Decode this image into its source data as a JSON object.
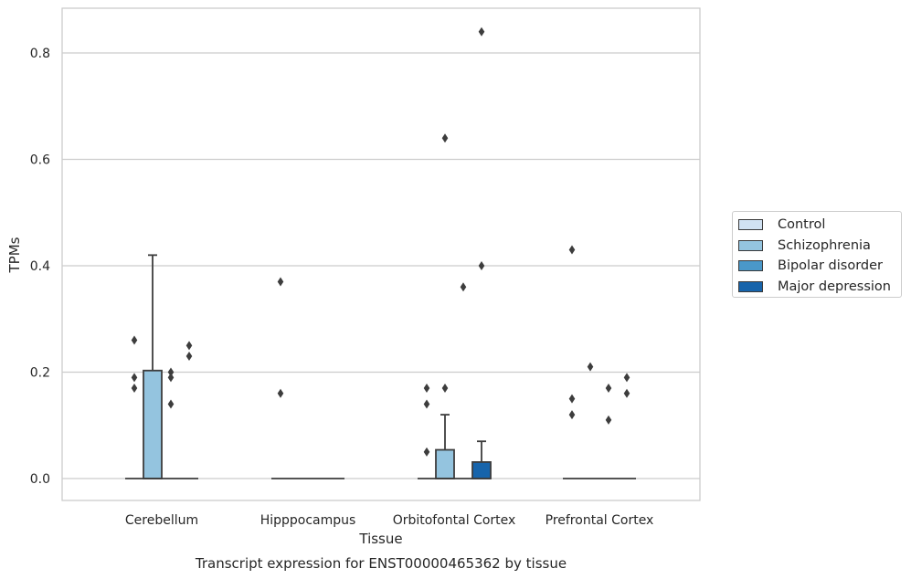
{
  "chart_data": {
    "type": "box",
    "title": "Transcript expression for ENST00000465362 by tissue",
    "xlabel": "Tissue",
    "ylabel": "TPMs",
    "ylim": [
      -0.04,
      0.885
    ],
    "yticks": [
      "0.0",
      "0.2",
      "0.4",
      "0.6",
      "0.8"
    ],
    "ytick_values": [
      0.0,
      0.2,
      0.4,
      0.6,
      0.8
    ],
    "grid": "horizontal",
    "legend_position": "right",
    "categories": [
      "Cerebellum",
      "Hipppocampus",
      "Orbitofontal Cortex",
      "Prefrontal Cortex"
    ],
    "series": [
      {
        "name": "Control",
        "color": "#d0e1f2"
      },
      {
        "name": "Schizophrenia",
        "color": "#94c4df"
      },
      {
        "name": "Bipolar disorder",
        "color": "#4a98c9"
      },
      {
        "name": "Major depression",
        "color": "#1764ab"
      }
    ],
    "boxes": [
      {
        "category": "Cerebellum",
        "series": "Control",
        "q1": 0,
        "median": 0,
        "q3": 0,
        "whisker_low": 0,
        "whisker_high": 0,
        "outliers": [
          0.26,
          0.19,
          0.17
        ]
      },
      {
        "category": "Cerebellum",
        "series": "Schizophrenia",
        "q1": 0,
        "median": 0,
        "q3": 0.203,
        "whisker_low": 0,
        "whisker_high": 0.42,
        "outliers": []
      },
      {
        "category": "Cerebellum",
        "series": "Bipolar disorder",
        "q1": 0,
        "median": 0,
        "q3": 0,
        "whisker_low": 0,
        "whisker_high": 0,
        "outliers": [
          0.2,
          0.19,
          0.14
        ]
      },
      {
        "category": "Cerebellum",
        "series": "Major depression",
        "q1": 0,
        "median": 0,
        "q3": 0,
        "whisker_low": 0,
        "whisker_high": 0,
        "outliers": [
          0.25,
          0.23
        ]
      },
      {
        "category": "Hipppocampus",
        "series": "Control",
        "q1": 0,
        "median": 0,
        "q3": 0,
        "whisker_low": 0,
        "whisker_high": 0,
        "outliers": [
          0.37,
          0.16
        ]
      },
      {
        "category": "Hipppocampus",
        "series": "Schizophrenia",
        "q1": 0,
        "median": 0,
        "q3": 0,
        "whisker_low": 0,
        "whisker_high": 0,
        "outliers": []
      },
      {
        "category": "Hipppocampus",
        "series": "Bipolar disorder",
        "q1": 0,
        "median": 0,
        "q3": 0,
        "whisker_low": 0,
        "whisker_high": 0,
        "outliers": []
      },
      {
        "category": "Hipppocampus",
        "series": "Major depression",
        "q1": 0,
        "median": 0,
        "q3": 0,
        "whisker_low": 0,
        "whisker_high": 0,
        "outliers": []
      },
      {
        "category": "Orbitofontal Cortex",
        "series": "Control",
        "q1": 0,
        "median": 0,
        "q3": 0,
        "whisker_low": 0,
        "whisker_high": 0,
        "outliers": [
          0.17,
          0.14,
          0.05
        ]
      },
      {
        "category": "Orbitofontal Cortex",
        "series": "Schizophrenia",
        "q1": 0,
        "median": 0,
        "q3": 0.054,
        "whisker_low": 0,
        "whisker_high": 0.12,
        "outliers": [
          0.64,
          0.17
        ]
      },
      {
        "category": "Orbitofontal Cortex",
        "series": "Bipolar disorder",
        "q1": 0,
        "median": 0,
        "q3": 0,
        "whisker_low": 0,
        "whisker_high": 0,
        "outliers": [
          0.36
        ]
      },
      {
        "category": "Orbitofontal Cortex",
        "series": "Major depression",
        "q1": 0,
        "median": 0,
        "q3": 0.031,
        "whisker_low": 0,
        "whisker_high": 0.07,
        "outliers": [
          0.84,
          0.4
        ]
      },
      {
        "category": "Prefrontal Cortex",
        "series": "Control",
        "q1": 0,
        "median": 0,
        "q3": 0,
        "whisker_low": 0,
        "whisker_high": 0,
        "outliers": [
          0.43,
          0.15,
          0.12
        ]
      },
      {
        "category": "Prefrontal Cortex",
        "series": "Schizophrenia",
        "q1": 0,
        "median": 0,
        "q3": 0,
        "whisker_low": 0,
        "whisker_high": 0,
        "outliers": [
          0.21
        ]
      },
      {
        "category": "Prefrontal Cortex",
        "series": "Bipolar disorder",
        "q1": 0,
        "median": 0,
        "q3": 0,
        "whisker_low": 0,
        "whisker_high": 0,
        "outliers": [
          0.17,
          0.11
        ]
      },
      {
        "category": "Prefrontal Cortex",
        "series": "Major depression",
        "q1": 0,
        "median": 0,
        "q3": 0,
        "whisker_low": 0,
        "whisker_high": 0,
        "outliers": [
          0.19,
          0.16
        ]
      }
    ]
  }
}
